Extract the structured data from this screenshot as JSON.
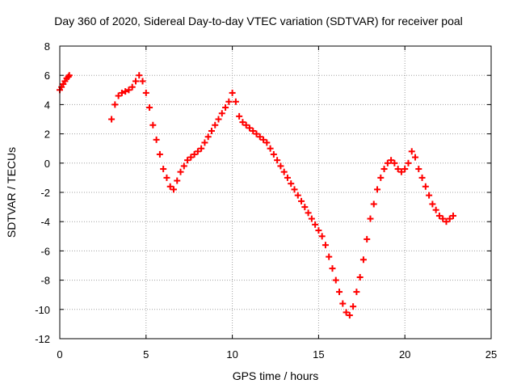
{
  "chart_data": {
    "type": "scatter",
    "title": "Day 360 of 2020, Sidereal Day-to-day VTEC variation (SDTVAR) for receiver poal",
    "xlabel": "GPS time / hours",
    "ylabel": "SDTVAR / TECUs",
    "xlim": [
      0,
      25
    ],
    "ylim": [
      -12,
      8
    ],
    "xticks": [
      0,
      5,
      10,
      15,
      20,
      25
    ],
    "yticks": [
      -12,
      -10,
      -8,
      -6,
      -4,
      -2,
      0,
      2,
      4,
      6,
      8
    ],
    "grid": true,
    "marker": "+",
    "color": "#ff0000",
    "series": [
      {
        "name": "SDTVAR",
        "x": [
          0.0,
          0.1,
          0.2,
          0.3,
          0.4,
          0.5,
          0.55,
          3.0,
          3.2,
          3.4,
          3.6,
          3.8,
          4.0,
          4.2,
          4.4,
          4.6,
          4.8,
          5.0,
          5.2,
          5.4,
          5.6,
          5.8,
          6.0,
          6.2,
          6.4,
          6.6,
          6.8,
          7.0,
          7.2,
          7.4,
          7.6,
          7.8,
          8.0,
          8.2,
          8.4,
          8.6,
          8.8,
          9.0,
          9.2,
          9.4,
          9.6,
          9.8,
          10.0,
          10.2,
          10.4,
          10.6,
          10.8,
          11.0,
          11.2,
          11.4,
          11.6,
          11.8,
          12.0,
          12.2,
          12.4,
          12.6,
          12.8,
          13.0,
          13.2,
          13.4,
          13.6,
          13.8,
          14.0,
          14.2,
          14.4,
          14.6,
          14.8,
          15.0,
          15.2,
          15.4,
          15.6,
          15.8,
          16.0,
          16.2,
          16.4,
          16.6,
          16.8,
          17.0,
          17.2,
          17.4,
          17.6,
          17.8,
          18.0,
          18.2,
          18.4,
          18.6,
          18.8,
          19.0,
          19.2,
          19.4,
          19.6,
          19.8,
          20.0,
          20.2,
          20.4,
          20.6,
          20.8,
          21.0,
          21.2,
          21.4,
          21.6,
          21.8,
          22.0,
          22.2,
          22.4,
          22.6,
          22.8
        ],
        "y": [
          5.0,
          5.2,
          5.4,
          5.6,
          5.8,
          5.9,
          6.0,
          3.0,
          4.0,
          4.6,
          4.8,
          4.9,
          5.0,
          5.2,
          5.6,
          6.0,
          5.6,
          4.8,
          3.8,
          2.6,
          1.6,
          0.6,
          -0.4,
          -1.0,
          -1.6,
          -1.8,
          -1.2,
          -0.6,
          -0.2,
          0.2,
          0.4,
          0.6,
          0.8,
          1.0,
          1.4,
          1.8,
          2.2,
          2.6,
          3.0,
          3.4,
          3.8,
          4.2,
          4.8,
          4.2,
          3.2,
          2.8,
          2.6,
          2.4,
          2.2,
          2.0,
          1.8,
          1.6,
          1.4,
          1.0,
          0.6,
          0.2,
          -0.2,
          -0.6,
          -1.0,
          -1.4,
          -1.8,
          -2.2,
          -2.6,
          -3.0,
          -3.4,
          -3.8,
          -4.2,
          -4.6,
          -5.0,
          -5.6,
          -6.4,
          -7.2,
          -8.0,
          -8.8,
          -9.6,
          -10.2,
          -10.4,
          -9.8,
          -8.8,
          -7.8,
          -6.6,
          -5.2,
          -3.8,
          -2.8,
          -1.8,
          -1.0,
          -0.4,
          0.0,
          0.2,
          0.0,
          -0.4,
          -0.6,
          -0.4,
          0.0,
          0.8,
          0.4,
          -0.4,
          -1.0,
          -1.6,
          -2.2,
          -2.8,
          -3.2,
          -3.6,
          -3.8,
          -4.0,
          -3.8,
          -3.6
        ]
      }
    ]
  }
}
